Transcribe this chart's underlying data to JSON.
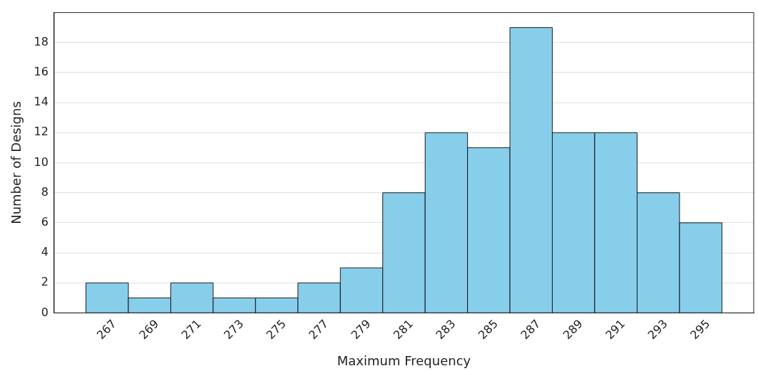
{
  "chart_data": {
    "type": "histogram",
    "xlabel": "Maximum Frequency",
    "ylabel": "Number of Designs",
    "bins": [
      266,
      268,
      270,
      272,
      274,
      276,
      278,
      280,
      282,
      284,
      286,
      288,
      290,
      292,
      294,
      296
    ],
    "values": [
      2,
      1,
      2,
      1,
      1,
      2,
      3,
      8,
      12,
      11,
      19,
      12,
      12,
      8,
      6
    ],
    "color": "#87ceeb",
    "xlim": [
      264.5,
      297.5
    ],
    "xticks": [
      267,
      269,
      271,
      273,
      275,
      277,
      279,
      281,
      283,
      285,
      287,
      289,
      291,
      293,
      295
    ],
    "ylim": [
      0,
      20
    ],
    "yticks": [
      0,
      2,
      4,
      6,
      8,
      10,
      12,
      14,
      16,
      18
    ],
    "grid": "y"
  }
}
